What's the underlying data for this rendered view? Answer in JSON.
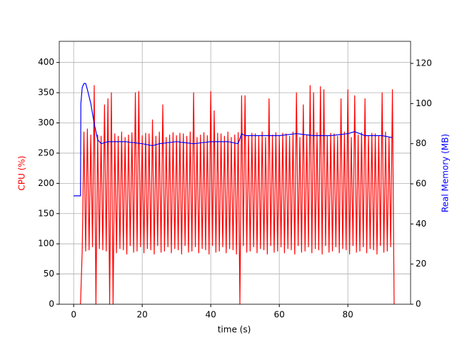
{
  "chart_data": {
    "type": "line",
    "x_label": "time (s)",
    "y_label": "CPU (%)",
    "y2_label": "Real Memory (MB)",
    "xlim": [
      -4.2,
      98.3
    ],
    "xticks": [
      0,
      20,
      40,
      60,
      80
    ],
    "ylim": [
      0,
      435
    ],
    "yticks": [
      0,
      50,
      100,
      150,
      200,
      250,
      300,
      350,
      400
    ],
    "y2lim": [
      0,
      131
    ],
    "y2ticks": [
      0,
      20,
      40,
      60,
      80,
      100,
      120
    ],
    "grid": true,
    "series": [
      {
        "name": "CPU",
        "color": "#ff0000",
        "axis": "y",
        "x": [
          2,
          2.5,
          3,
          3.5,
          4,
          4.5,
          5,
          5.5,
          6,
          6.5,
          7,
          7.5,
          8,
          8.5,
          9,
          9.5,
          10,
          10.5,
          11,
          11.5,
          12,
          12.5,
          13,
          13.5,
          14,
          14.5,
          15,
          15.5,
          16,
          16.5,
          17,
          17.5,
          18,
          18.5,
          19,
          19.5,
          20,
          20.5,
          21,
          21.5,
          22,
          22.5,
          23,
          23.5,
          24,
          24.5,
          25,
          25.5,
          26,
          26.5,
          27,
          27.5,
          28,
          28.5,
          29,
          29.5,
          30,
          30.5,
          31,
          31.5,
          32,
          32.5,
          33,
          33.5,
          34,
          34.5,
          35,
          35.5,
          36,
          36.5,
          37,
          37.5,
          38,
          38.5,
          39,
          39.5,
          40,
          40.5,
          41,
          41.5,
          42,
          42.5,
          43,
          43.5,
          44,
          44.5,
          45,
          45.5,
          46,
          46.5,
          47,
          47.5,
          48,
          48.5,
          49,
          49.5,
          50,
          50.5,
          51,
          51.5,
          52,
          52.5,
          53,
          53.5,
          54,
          54.5,
          55,
          55.5,
          56,
          56.5,
          57,
          57.5,
          58,
          58.5,
          59,
          59.5,
          60,
          60.5,
          61,
          61.5,
          62,
          62.5,
          63,
          63.5,
          64,
          64.5,
          65,
          65.5,
          66,
          66.5,
          67,
          67.5,
          68,
          68.5,
          69,
          69.5,
          70,
          70.5,
          71,
          71.5,
          72,
          72.5,
          73,
          73.5,
          74,
          74.5,
          75,
          75.5,
          76,
          76.5,
          77,
          77.5,
          78,
          78.5,
          79,
          79.5,
          80,
          80.5,
          81,
          81.5,
          82,
          82.5,
          83,
          83.5,
          84,
          84.5,
          85,
          85.5,
          86,
          86.5,
          87,
          87.5,
          88,
          88.5,
          89,
          89.5,
          90,
          90.5,
          91,
          91.5,
          92,
          92.5,
          93,
          93.5
        ],
        "values": [
          0,
          90,
          285,
          88,
          290,
          90,
          280,
          95,
          362,
          0,
          280,
          92,
          278,
          90,
          330,
          88,
          340,
          0,
          350,
          0,
          282,
          85,
          278,
          92,
          285,
          90,
          276,
          83,
          280,
          97,
          284,
          86,
          350,
          88,
          352,
          95,
          279,
          85,
          283,
          92,
          282,
          90,
          305,
          83,
          278,
          97,
          285,
          86,
          330,
          88,
          276,
          95,
          280,
          85,
          284,
          92,
          279,
          90,
          283,
          83,
          282,
          97,
          278,
          86,
          285,
          88,
          350,
          95,
          276,
          85,
          280,
          92,
          284,
          90,
          279,
          83,
          352,
          97,
          320,
          86,
          283,
          88,
          282,
          95,
          278,
          85,
          285,
          92,
          276,
          90,
          280,
          83,
          284,
          0,
          345,
          97,
          345,
          86,
          279,
          88,
          283,
          95,
          282,
          85,
          278,
          92,
          285,
          90,
          276,
          83,
          340,
          97,
          280,
          86,
          284,
          88,
          279,
          95,
          283,
          85,
          282,
          92,
          278,
          90,
          285,
          83,
          350,
          97,
          276,
          86,
          330,
          88,
          280,
          95,
          362,
          85,
          350,
          92,
          284,
          90,
          360,
          83,
          355,
          97,
          279,
          86,
          283,
          88,
          282,
          95,
          278,
          85,
          340,
          92,
          285,
          90,
          355,
          83,
          276,
          97,
          345,
          86,
          280,
          88,
          284,
          95,
          340,
          85,
          279,
          92,
          283,
          90,
          282,
          83,
          278,
          97,
          350,
          86,
          285,
          88,
          276,
          95,
          355,
          0
        ]
      },
      {
        "name": "Real Memory",
        "color": "#0000ff",
        "axis": "y2",
        "x": [
          0,
          2,
          2.1,
          2.5,
          3,
          3.5,
          4,
          5,
          6,
          7,
          8,
          10,
          15,
          20,
          23,
          25,
          30,
          35,
          40,
          45,
          48,
          49,
          50,
          55,
          60,
          65,
          70,
          75,
          80,
          82,
          85,
          90,
          93
        ],
        "values": [
          54,
          54,
          100,
          108,
          110,
          110,
          107,
          100,
          90,
          82,
          80,
          81,
          81,
          80,
          79,
          80,
          81,
          80,
          81,
          81,
          80,
          85,
          84,
          84,
          84,
          85,
          84,
          84,
          85,
          86,
          84,
          84,
          83
        ]
      }
    ]
  }
}
